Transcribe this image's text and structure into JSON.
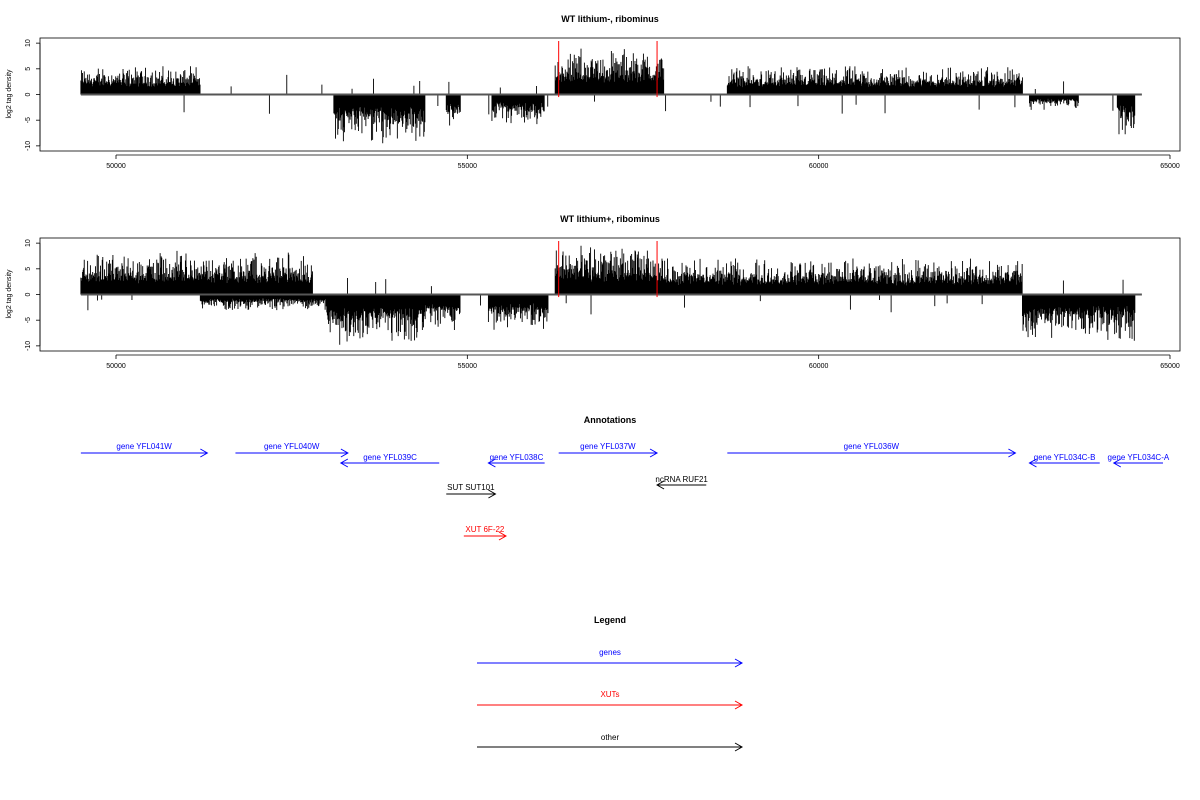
{
  "panels": [
    {
      "title": "WT lithium-, ribominus",
      "ylabel": "log2 tag density",
      "xlim": [
        49000,
        65000
      ],
      "ylim": [
        -11,
        11
      ],
      "xticks": [
        50000,
        55000,
        60000,
        65000
      ],
      "yticks": [
        10,
        5,
        0,
        -5,
        -10
      ],
      "tag_marks": [
        56300,
        57700
      ]
    },
    {
      "title": "WT lithium+, ribominus",
      "ylabel": "log2 tag density",
      "xlim": [
        49000,
        65000
      ],
      "ylim": [
        -11,
        11
      ],
      "xticks": [
        50000,
        55000,
        60000,
        65000
      ],
      "yticks": [
        10,
        5,
        0,
        -5,
        -10
      ],
      "tag_marks": [
        56300,
        57700
      ]
    }
  ],
  "chart_data": [
    {
      "type": "bar",
      "title": "WT lithium-, ribominus",
      "ylabel": "log2 tag density",
      "xlim": [
        49000,
        65000
      ],
      "ylim": [
        -11,
        11
      ],
      "grid": false,
      "series": [
        {
          "name": "",
          "segments": [
            {
              "strand": "+",
              "start": 49500,
              "end": 51200,
              "max": 5.5
            },
            {
              "strand": "-",
              "start": 53100,
              "end": 54400,
              "max": 9.5
            },
            {
              "strand": "-",
              "start": 54700,
              "end": 54900,
              "max": 7
            },
            {
              "strand": "-",
              "start": 55350,
              "end": 56100,
              "max": 6
            },
            {
              "strand": "+",
              "start": 56250,
              "end": 57800,
              "max": 9
            },
            {
              "strand": "+",
              "start": 58700,
              "end": 62900,
              "max": 5.5
            },
            {
              "strand": "-",
              "start": 63000,
              "end": 63700,
              "max": 3
            },
            {
              "strand": "-",
              "start": 64250,
              "end": 64500,
              "max": 8
            }
          ]
        }
      ]
    },
    {
      "type": "bar",
      "title": "WT lithium+, ribominus",
      "ylabel": "log2 tag density",
      "xlim": [
        49000,
        65000
      ],
      "ylim": [
        -11,
        11
      ],
      "grid": false,
      "series": [
        {
          "name": "",
          "segments": [
            {
              "strand": "+",
              "start": 49500,
              "end": 52800,
              "max": 8.5
            },
            {
              "strand": "-",
              "start": 51200,
              "end": 53000,
              "max": 3
            },
            {
              "strand": "-",
              "start": 53000,
              "end": 54400,
              "max": 10
            },
            {
              "strand": "-",
              "start": 54400,
              "end": 54900,
              "max": 7
            },
            {
              "strand": "-",
              "start": 55300,
              "end": 56150,
              "max": 7
            },
            {
              "strand": "+",
              "start": 56250,
              "end": 57800,
              "max": 9.5
            },
            {
              "strand": "+",
              "start": 57800,
              "end": 62900,
              "max": 7
            },
            {
              "strand": "-",
              "start": 62900,
              "end": 64500,
              "max": 9
            }
          ]
        }
      ]
    }
  ],
  "annotations": {
    "title": "Annotations",
    "items": [
      {
        "label": "gene YFL041W",
        "start": 49500,
        "end": 51300,
        "strand": "+",
        "row": 0,
        "color": "#0000ff"
      },
      {
        "label": "gene YFL040W",
        "start": 51700,
        "end": 53300,
        "strand": "+",
        "row": 0,
        "color": "#0000ff"
      },
      {
        "label": "gene YFL039C",
        "start": 53200,
        "end": 54600,
        "strand": "-",
        "row": 1,
        "color": "#0000ff"
      },
      {
        "label": "gene YFL038C",
        "start": 55300,
        "end": 56100,
        "strand": "-",
        "row": 1,
        "color": "#0000ff"
      },
      {
        "label": "gene YFL037W",
        "start": 56300,
        "end": 57700,
        "strand": "+",
        "row": 0,
        "color": "#0000ff"
      },
      {
        "label": "gene YFL036W",
        "start": 58700,
        "end": 62800,
        "strand": "+",
        "row": 0,
        "color": "#0000ff"
      },
      {
        "label": "gene YFL034C-B",
        "start": 63000,
        "end": 64000,
        "strand": "-",
        "row": 1,
        "color": "#0000ff"
      },
      {
        "label": "gene YFL034C-A",
        "start": 64200,
        "end": 64900,
        "strand": "-",
        "row": 1,
        "color": "#0000ff"
      },
      {
        "label": "SUT SUT101",
        "start": 54700,
        "end": 55400,
        "strand": "+",
        "row": 2,
        "color": "#000000"
      },
      {
        "label": "ncRNA RUF21",
        "start": 57700,
        "end": 58400,
        "strand": "-",
        "row": 3,
        "color": "#000000"
      },
      {
        "label": "XUT 6F-22",
        "start": 54950,
        "end": 55550,
        "strand": "+",
        "row": 4,
        "color": "#ff0000"
      }
    ]
  },
  "legend": {
    "title": "Legend",
    "items": [
      {
        "label": "genes",
        "color": "#0000ff"
      },
      {
        "label": "XUTs",
        "color": "#ff0000"
      },
      {
        "label": "other",
        "color": "#000000"
      }
    ]
  }
}
